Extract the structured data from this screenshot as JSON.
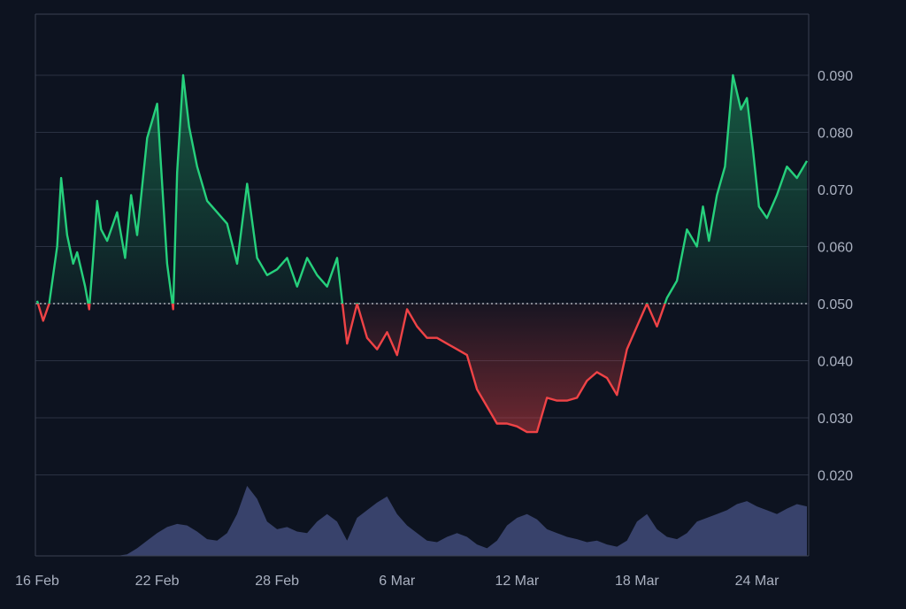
{
  "colors": {
    "background": "#0d1320",
    "grid": "#2a3142",
    "border": "#3a4152",
    "label": "#aab1c0",
    "up": "#26d07c",
    "down": "#ef4346",
    "baseline": "#e6e8ee",
    "volume": "#3d4873"
  },
  "chart_data": {
    "type": "line",
    "subtype": "baseline-area",
    "title": "",
    "xlabel": "",
    "ylabel": "",
    "baseline": 0.05,
    "ylim": [
      0.013,
      0.1
    ],
    "y_ticks": [
      "0.020",
      "0.030",
      "0.040",
      "0.050",
      "0.060",
      "0.070",
      "0.080",
      "0.090"
    ],
    "x_ticks": [
      "16 Feb",
      "22 Feb",
      "28 Feb",
      "6 Mar",
      "12 Mar",
      "18 Mar",
      "24 Mar"
    ],
    "x_range_days": [
      0,
      38.5
    ],
    "grid": true,
    "legend": "none",
    "series": [
      {
        "x_days": [
          0,
          0.3,
          0.6,
          1.0,
          1.2,
          1.5,
          1.8,
          2.0,
          2.2,
          2.4,
          2.6,
          2.8,
          3.0,
          3.2,
          3.5,
          4.0,
          4.4,
          4.7,
          5.0,
          5.5,
          6.0,
          6.5,
          6.8,
          7.0,
          7.3,
          7.6,
          8.0,
          8.5,
          9.0,
          9.5,
          10.0,
          10.5,
          11.0,
          11.5,
          12.0,
          12.5,
          13.0,
          13.5,
          14.0,
          14.5,
          15.0,
          15.5,
          16.0,
          16.5,
          17.0,
          17.5,
          18.0,
          18.5,
          19.0,
          19.5,
          20.0,
          20.5,
          21.0,
          21.5,
          22.0,
          22.5,
          23.0,
          23.5,
          24.0,
          24.5,
          25.0,
          25.5,
          26.0,
          26.5,
          27.0,
          27.5,
          28.0,
          28.5,
          29.0,
          29.5,
          30.0,
          30.5,
          31.0,
          31.5,
          32.0,
          32.5,
          33.0,
          33.3,
          33.6,
          34.0,
          34.4,
          34.8,
          35.2,
          35.5,
          35.8,
          36.1,
          36.5,
          37.0,
          37.5,
          38.0,
          38.5
        ],
        "y": [
          0.0505,
          0.047,
          0.05,
          0.06,
          0.072,
          0.062,
          0.057,
          0.059,
          0.056,
          0.053,
          0.049,
          0.058,
          0.068,
          0.063,
          0.061,
          0.066,
          0.058,
          0.069,
          0.062,
          0.079,
          0.085,
          0.057,
          0.049,
          0.073,
          0.09,
          0.081,
          0.074,
          0.068,
          0.066,
          0.064,
          0.057,
          0.071,
          0.058,
          0.055,
          0.056,
          0.058,
          0.053,
          0.058,
          0.055,
          0.053,
          0.058,
          0.043,
          0.05,
          0.044,
          0.042,
          0.045,
          0.041,
          0.049,
          0.046,
          0.044,
          0.044,
          0.043,
          0.042,
          0.041,
          0.035,
          0.032,
          0.029,
          0.029,
          0.0285,
          0.0275,
          0.0275,
          0.0335,
          0.033,
          0.033,
          0.0335,
          0.0365,
          0.038,
          0.037,
          0.034,
          0.042,
          0.046,
          0.05,
          0.046,
          0.051,
          0.054,
          0.063,
          0.06,
          0.067,
          0.061,
          0.069,
          0.074,
          0.09,
          0.084,
          0.086,
          0.077,
          0.067,
          0.065,
          0.069,
          0.074,
          0.072,
          0.075
        ]
      }
    ],
    "volume": {
      "x_days": [
        0,
        2,
        4,
        4.5,
        5,
        5.5,
        6,
        6.5,
        7,
        7.5,
        8,
        8.5,
        9,
        9.5,
        10,
        10.5,
        11,
        11.5,
        12,
        12.5,
        13,
        13.5,
        14,
        14.5,
        15,
        15.5,
        16,
        16.5,
        17,
        17.5,
        18,
        18.5,
        19,
        19.5,
        20,
        20.5,
        21,
        21.5,
        22,
        22.5,
        23,
        23.5,
        24,
        24.5,
        25,
        25.5,
        26,
        26.5,
        27,
        27.5,
        28,
        28.5,
        29,
        29.5,
        30,
        30.5,
        31,
        31.5,
        32,
        32.5,
        33,
        33.5,
        34,
        34.5,
        35,
        35.5,
        36,
        36.5,
        37,
        37.5,
        38,
        38.5
      ],
      "values": [
        0,
        0,
        0,
        0.02,
        0.1,
        0.2,
        0.3,
        0.38,
        0.42,
        0.4,
        0.32,
        0.22,
        0.2,
        0.3,
        0.55,
        0.92,
        0.75,
        0.45,
        0.35,
        0.38,
        0.32,
        0.3,
        0.45,
        0.55,
        0.45,
        0.2,
        0.5,
        0.6,
        0.7,
        0.78,
        0.55,
        0.4,
        0.3,
        0.2,
        0.18,
        0.25,
        0.3,
        0.25,
        0.15,
        0.1,
        0.2,
        0.4,
        0.5,
        0.55,
        0.48,
        0.35,
        0.3,
        0.25,
        0.22,
        0.18,
        0.2,
        0.15,
        0.12,
        0.2,
        0.45,
        0.55,
        0.35,
        0.25,
        0.22,
        0.3,
        0.45,
        0.5,
        0.55,
        0.6,
        0.68,
        0.72,
        0.65,
        0.6,
        0.55,
        0.62,
        0.68,
        0.65
      ]
    }
  }
}
